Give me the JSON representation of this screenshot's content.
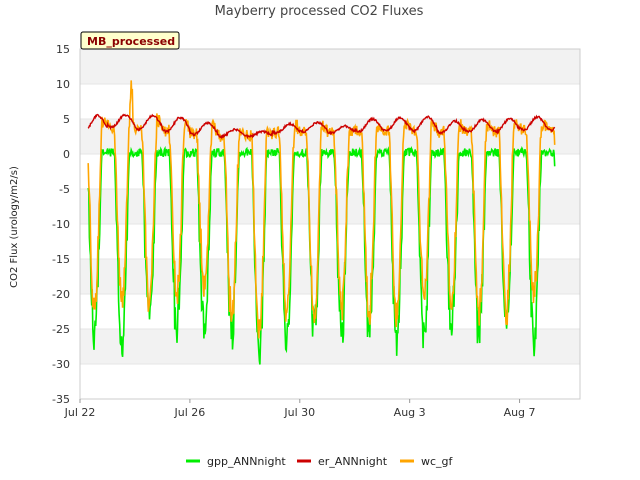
{
  "chart_data": {
    "type": "line",
    "title": "Mayberry processed CO2 Fluxes",
    "ylabel": "CO2 Flux (urology/m2/s)",
    "xlabel": "",
    "badge": "MB_processed",
    "ylim": [
      -35,
      15
    ],
    "yticks": [
      15,
      10,
      5,
      0,
      -5,
      -10,
      -15,
      -20,
      -25,
      -30,
      -35
    ],
    "xlim_days": [
      0,
      18.2
    ],
    "xticks": [
      {
        "label": "Jul 22",
        "day": 0
      },
      {
        "label": "Jul 26",
        "day": 4
      },
      {
        "label": "Jul 30",
        "day": 8
      },
      {
        "label": "Aug 3",
        "day": 12
      },
      {
        "label": "Aug 7",
        "day": 16
      }
    ],
    "x_start_day": 0.3,
    "x_end_day": 17.3,
    "grid": "horizontal bands",
    "legend_position": "bottom",
    "series": [
      {
        "name": "gpp_ANNnight",
        "color": "#00ee00",
        "daily_min": [
          -28,
          -30,
          -25,
          -27,
          -28,
          -28,
          -32,
          -29,
          -27,
          -27,
          -28,
          -29,
          -28,
          -27,
          -28,
          -27,
          -29,
          -29
        ],
        "night_level": 0.2
      },
      {
        "name": "er_ANNnight",
        "color": "#cc0000",
        "daily_max": [
          5.5,
          5.6,
          5.5,
          5.2,
          4.4,
          3.5,
          3.2,
          4.3,
          4.5,
          4.0,
          5.0,
          5.2,
          5.3,
          4.7,
          4.9,
          5.0,
          5.3,
          5.3
        ],
        "daily_min": [
          3.2,
          3.8,
          3.5,
          3.2,
          2.8,
          2.5,
          2.5,
          3.0,
          3.2,
          3.0,
          3.2,
          3.3,
          3.3,
          3.0,
          3.2,
          3.2,
          3.4,
          3.4
        ]
      },
      {
        "name": "wc_gf",
        "color": "#ffa500",
        "daily_min": [
          -24,
          -23,
          -22,
          -22,
          -21,
          -25,
          -28,
          -24,
          -25,
          -24,
          -24,
          -25,
          -22,
          -23,
          -24,
          -24,
          -22,
          -22
        ],
        "daily_peak": [
          6,
          11,
          6,
          5,
          5,
          4,
          4,
          5,
          5,
          4,
          5,
          5,
          5,
          5,
          5,
          5,
          5,
          6
        ]
      }
    ]
  }
}
